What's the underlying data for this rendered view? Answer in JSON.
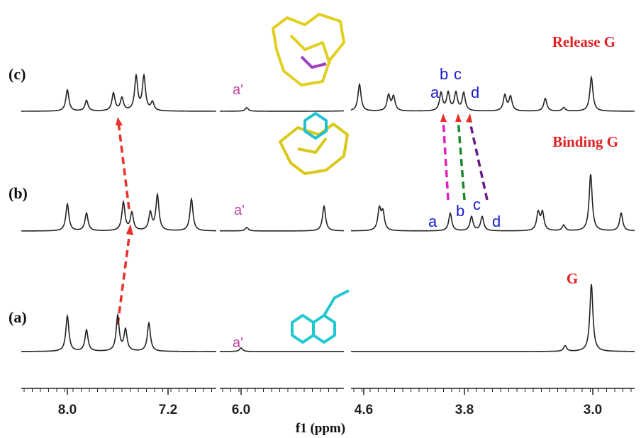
{
  "spectra": [
    {
      "label": "(c)",
      "note": "Release G",
      "peak_labels": [
        "a'",
        "a",
        "b",
        "c",
        "d"
      ]
    },
    {
      "label": "(b)",
      "note": "Binding G",
      "peak_labels": [
        "a'",
        "a",
        "b",
        "c",
        "d"
      ]
    },
    {
      "label": "(a)",
      "note": "G",
      "peak_labels": [
        "a'"
      ]
    }
  ],
  "axis": {
    "label": "f1 (ppm)",
    "ticks": [
      "8.0",
      "7.2",
      "6.0",
      "4.6",
      "3.8",
      "3.0"
    ]
  }
}
